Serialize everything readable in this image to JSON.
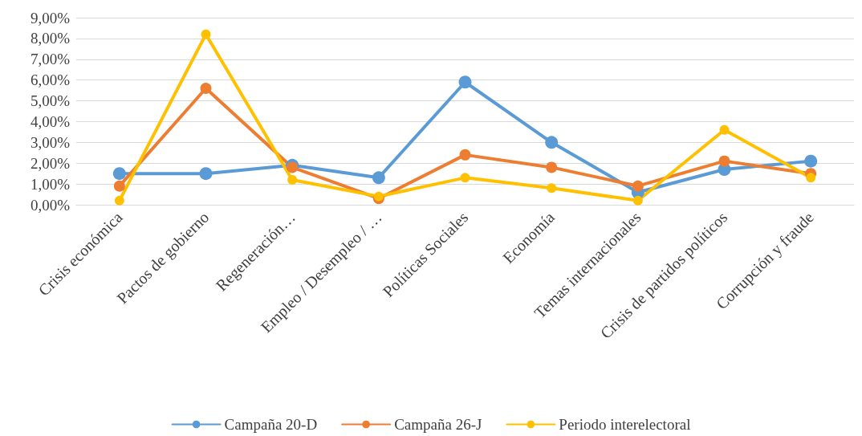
{
  "chart_data": {
    "type": "line",
    "categories": [
      "Crisis económica",
      "Pactos de gobierno",
      "Regeneración…",
      "Empleo / Desempleo / …",
      "Políticas Sociales",
      "Economía",
      "Temas internacionales",
      "Crisis de partidos políticos",
      "Corrupción y fraude"
    ],
    "series": [
      {
        "name": "Campaña 20-D",
        "color": "#5b9bd5",
        "values": [
          1.5,
          1.5,
          1.9,
          1.3,
          5.9,
          3.0,
          0.6,
          1.7,
          2.1
        ]
      },
      {
        "name": "Campaña 26-J",
        "color": "#ed7d31",
        "values": [
          0.9,
          5.6,
          1.8,
          0.3,
          2.4,
          1.8,
          0.9,
          2.1,
          1.5
        ]
      },
      {
        "name": "Periodo interelectoral",
        "color": "#ffc000",
        "values": [
          0.2,
          8.2,
          1.2,
          0.4,
          1.3,
          0.8,
          0.2,
          3.6,
          1.3
        ]
      }
    ],
    "ylim": [
      0,
      9
    ],
    "yticks": [
      {
        "value": 0,
        "label": "0,00%"
      },
      {
        "value": 1,
        "label": "1,00%"
      },
      {
        "value": 2,
        "label": "2,00%"
      },
      {
        "value": 3,
        "label": "3,00%"
      },
      {
        "value": 4,
        "label": "4,00%"
      },
      {
        "value": 5,
        "label": "5,00%"
      },
      {
        "value": 6,
        "label": "6,00%"
      },
      {
        "value": 7,
        "label": "7,00%"
      },
      {
        "value": 8,
        "label": "8,00%"
      },
      {
        "value": 9,
        "label": "9,00%"
      }
    ],
    "grid": "y",
    "legend": "bottom",
    "marker": "circle",
    "line_style": "solid"
  }
}
